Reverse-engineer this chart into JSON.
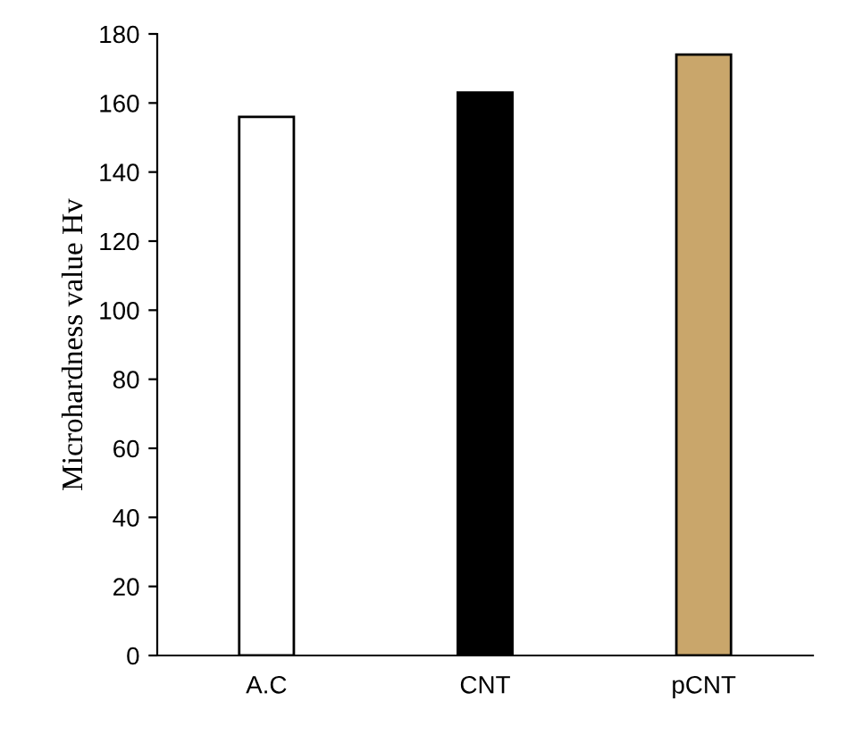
{
  "chart_data": {
    "type": "bar",
    "ylabel": "Microhardness value Hv",
    "categories": [
      "A.C",
      "CNT",
      "pCNT"
    ],
    "values": [
      156,
      163,
      174
    ],
    "colors": [
      "#ffffff",
      "#000000",
      "#c9a66b"
    ],
    "ylim": [
      0,
      180
    ],
    "yticks": [
      0,
      20,
      40,
      60,
      80,
      100,
      120,
      140,
      160,
      180
    ],
    "grid": false,
    "legend": false
  }
}
